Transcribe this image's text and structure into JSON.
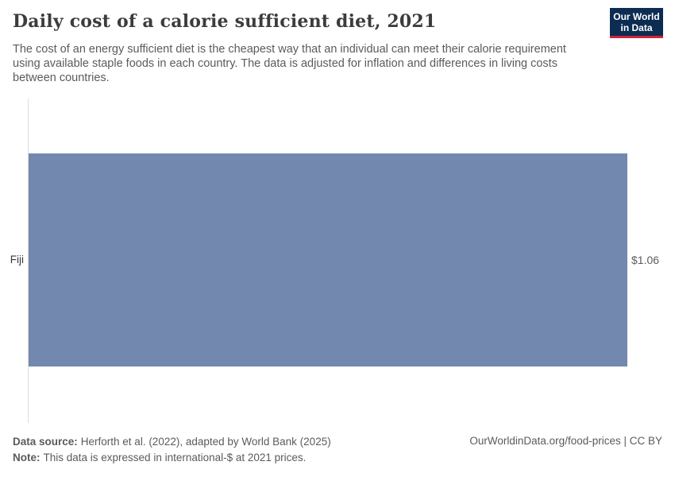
{
  "header": {
    "title": "Daily cost of a calorie sufficient diet, 2021",
    "subtitle": "The cost of an energy sufficient diet is the cheapest way that an individual can meet their calorie requirement using available staple foods in each country. The data is adjusted for inflation and differences in living costs between countries.",
    "logo": {
      "line1": "Our World",
      "line2": "in Data"
    }
  },
  "chart_data": {
    "type": "bar",
    "orientation": "horizontal",
    "categories": [
      "Fiji"
    ],
    "values": [
      1.06
    ],
    "value_labels": [
      "$1.06"
    ],
    "unit": "international-$ per day",
    "xlim": [
      0,
      1.06
    ],
    "title": "Daily cost of a calorie sufficient diet, 2021",
    "xlabel": "",
    "ylabel": "",
    "grid": false,
    "legend": false
  },
  "colors": {
    "bar": "#7388ae",
    "axis_line": "#dedede",
    "title_text": "#3c3c3c",
    "body_text": "#5b5b5b",
    "logo_bg": "#0c2c52",
    "logo_stripe": "#cf2236"
  },
  "footer": {
    "data_source_label": "Data source:",
    "data_source_text": "Herforth et al. (2022), adapted by World Bank (2025)",
    "note_label": "Note:",
    "note_text": "This data is expressed in international-$ at 2021 prices.",
    "credit": "OurWorldinData.org/food-prices | CC BY"
  }
}
